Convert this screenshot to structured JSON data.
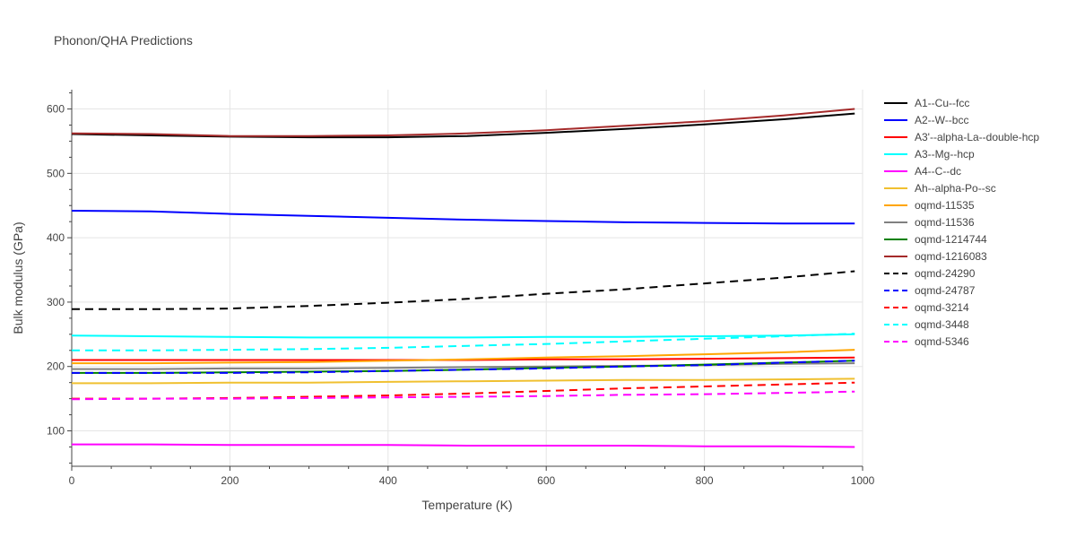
{
  "chart_data": {
    "type": "line",
    "title": "Phonon/QHA Predictions",
    "xlabel": "Temperature (K)",
    "ylabel": "Bulk modulus (GPa)",
    "xlim": [
      0,
      1000
    ],
    "ylim": [
      45,
      630
    ],
    "xticks": [
      0,
      200,
      400,
      600,
      800,
      1000
    ],
    "yticks": [
      100,
      200,
      300,
      400,
      500,
      600
    ],
    "grid": true,
    "legend_position": "right",
    "series": [
      {
        "name": "A1--Cu--fcc",
        "color": "#000000",
        "dash": "solid",
        "x": [
          0,
          100,
          200,
          300,
          400,
          500,
          600,
          700,
          800,
          900,
          990
        ],
        "y": [
          561,
          559,
          557,
          556,
          556,
          558,
          563,
          569,
          576,
          584,
          593
        ]
      },
      {
        "name": "A2--W--bcc",
        "color": "#0000ff",
        "dash": "solid",
        "x": [
          0,
          100,
          200,
          300,
          400,
          500,
          600,
          700,
          800,
          900,
          990
        ],
        "y": [
          442,
          441,
          437,
          434,
          431,
          428,
          426,
          424,
          423,
          422,
          422
        ]
      },
      {
        "name": "A3'--alpha-La--double-hcp",
        "color": "#ff0000",
        "dash": "solid",
        "x": [
          0,
          100,
          200,
          300,
          400,
          500,
          600,
          700,
          800,
          900,
          990
        ],
        "y": [
          210,
          210,
          210,
          210,
          210,
          210,
          211,
          211,
          212,
          213,
          214
        ]
      },
      {
        "name": "A3--Mg--hcp",
        "color": "#00ffff",
        "dash": "solid",
        "x": [
          0,
          100,
          200,
          300,
          400,
          500,
          600,
          700,
          800,
          900,
          990
        ],
        "y": [
          248,
          247,
          246,
          245,
          245,
          245,
          246,
          246,
          247,
          248,
          250
        ]
      },
      {
        "name": "A4--C--dc",
        "color": "#ff00ff",
        "dash": "solid",
        "x": [
          0,
          100,
          200,
          300,
          400,
          500,
          600,
          700,
          800,
          900,
          990
        ],
        "y": [
          79,
          79,
          78,
          78,
          78,
          77,
          77,
          77,
          76,
          76,
          75
        ]
      },
      {
        "name": "Ah--alpha-Po--sc",
        "color": "#f0c030",
        "dash": "solid",
        "x": [
          0,
          100,
          200,
          300,
          400,
          500,
          600,
          700,
          800,
          900,
          990
        ],
        "y": [
          174,
          174,
          175,
          175,
          176,
          177,
          178,
          179,
          179,
          180,
          181
        ]
      },
      {
        "name": "oqmd-11535",
        "color": "#ffa500",
        "dash": "solid",
        "x": [
          0,
          100,
          200,
          300,
          400,
          500,
          600,
          700,
          800,
          900,
          990
        ],
        "y": [
          205,
          205,
          206,
          207,
          209,
          211,
          214,
          216,
          219,
          222,
          226
        ]
      },
      {
        "name": "oqmd-11536",
        "color": "#808080",
        "dash": "solid",
        "x": [
          0,
          100,
          200,
          300,
          400,
          500,
          600,
          700,
          800,
          900,
          990
        ],
        "y": [
          196,
          196,
          197,
          197,
          198,
          199,
          200,
          201,
          202,
          204,
          205
        ]
      },
      {
        "name": "oqmd-1214744",
        "color": "#008000",
        "dash": "solid",
        "x": [
          0,
          100,
          200,
          300,
          400,
          500,
          600,
          700,
          800,
          900,
          990
        ],
        "y": [
          190,
          190,
          191,
          192,
          193,
          195,
          198,
          200,
          203,
          206,
          209
        ]
      },
      {
        "name": "oqmd-1216083",
        "color": "#a52a2a",
        "dash": "solid",
        "x": [
          0,
          100,
          200,
          300,
          400,
          500,
          600,
          700,
          800,
          900,
          990
        ],
        "y": [
          562,
          561,
          558,
          558,
          559,
          562,
          567,
          574,
          581,
          590,
          600
        ]
      },
      {
        "name": "oqmd-24290",
        "color": "#000000",
        "dash": "dash",
        "x": [
          0,
          100,
          200,
          300,
          400,
          500,
          600,
          700,
          800,
          900,
          990
        ],
        "y": [
          289,
          289,
          290,
          294,
          299,
          305,
          313,
          320,
          329,
          338,
          348
        ]
      },
      {
        "name": "oqmd-24787",
        "color": "#0000ff",
        "dash": "dash",
        "x": [
          0,
          100,
          200,
          300,
          400,
          500,
          600,
          700,
          800,
          900,
          990
        ],
        "y": [
          190,
          190,
          190,
          191,
          193,
          195,
          197,
          200,
          202,
          206,
          209
        ]
      },
      {
        "name": "oqmd-3214",
        "color": "#ff0000",
        "dash": "dash",
        "x": [
          0,
          100,
          200,
          300,
          400,
          500,
          600,
          700,
          800,
          900,
          990
        ],
        "y": [
          150,
          150,
          151,
          153,
          155,
          158,
          162,
          166,
          169,
          172,
          175
        ]
      },
      {
        "name": "oqmd-3448",
        "color": "#00ffff",
        "dash": "dash",
        "x": [
          0,
          100,
          200,
          300,
          400,
          500,
          600,
          700,
          800,
          900,
          990
        ],
        "y": [
          225,
          225,
          226,
          227,
          229,
          232,
          235,
          239,
          243,
          247,
          251
        ]
      },
      {
        "name": "oqmd-5346",
        "color": "#ff00ff",
        "dash": "dash",
        "x": [
          0,
          100,
          200,
          300,
          400,
          500,
          600,
          700,
          800,
          900,
          990
        ],
        "y": [
          149,
          150,
          150,
          151,
          152,
          153,
          154,
          156,
          157,
          159,
          161
        ]
      }
    ]
  }
}
